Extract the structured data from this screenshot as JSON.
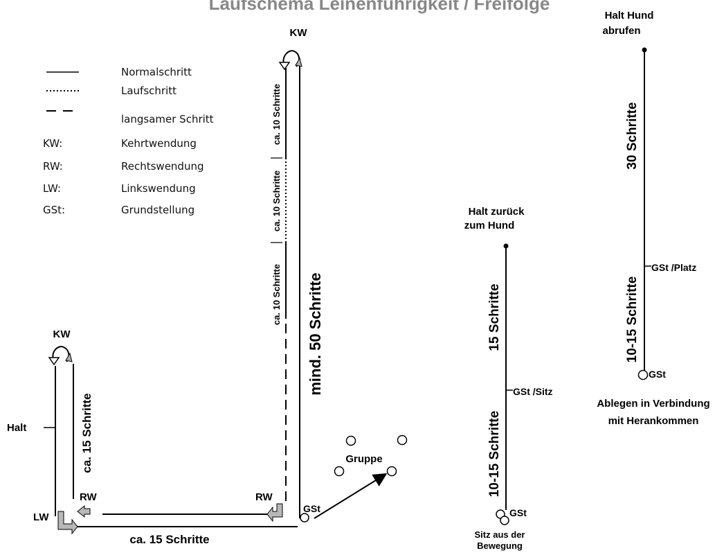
{
  "title": "Laufschema Leinenführigkeit / Freifolge",
  "legend": [
    {
      "abbr": "",
      "label": "Normalschritt",
      "line": "solid"
    },
    {
      "abbr": "",
      "label": "Laufschritt",
      "line": "dotted"
    },
    {
      "abbr": "",
      "label": "langsamer Schritt",
      "line": "dashed"
    },
    {
      "abbr": "KW:",
      "label": "Kehrtwendung"
    },
    {
      "abbr": "RW:",
      "label": "Rechtswendung"
    },
    {
      "abbr": "LW:",
      "label": "Linkswendung"
    },
    {
      "abbr": "GSt:",
      "label": "Grundstellung"
    }
  ],
  "main_course": {
    "kw_top": "KW",
    "kw_left": "KW",
    "mind_50": "mind. 50 Schritte",
    "seg_10_a": "ca. 10 Schritte",
    "seg_10_b": "ca. 10 Schritte",
    "seg_10_c": "ca. 10 Schritte",
    "ca_15_vertical": "ca. 15 Schritte",
    "ca_15_bottom": "ca.  15 Schritte",
    "halt": "Halt",
    "lw": "LW",
    "rw_left": "RW",
    "rw_right": "RW",
    "gst": "GSt",
    "gruppe": "Gruppe"
  },
  "sitz_course": {
    "top_label_1": "Halt zurück",
    "top_label_2": "zum Hund",
    "upper_steps": "15 Schritte",
    "lower_steps": "10-15 Schritte",
    "gst_sitz": "GSt /Sitz",
    "gst": "GSt",
    "bottom_label_1": "Sitz aus der",
    "bottom_label_2": "Bewegung"
  },
  "platz_course": {
    "top_label_1": "Halt Hund",
    "top_label_2": "abrufen",
    "upper_steps": "30 Schritte",
    "lower_steps": "10-15 Schritte",
    "gst_platz": "GSt /Platz",
    "gst": "GSt",
    "bottom_label_1": "Ablegen in Verbindung",
    "bottom_label_2": "mit Herankommen"
  },
  "colors": {
    "line": "#000000",
    "arrow_fill": "#b8b8b8",
    "title": "#888888"
  }
}
